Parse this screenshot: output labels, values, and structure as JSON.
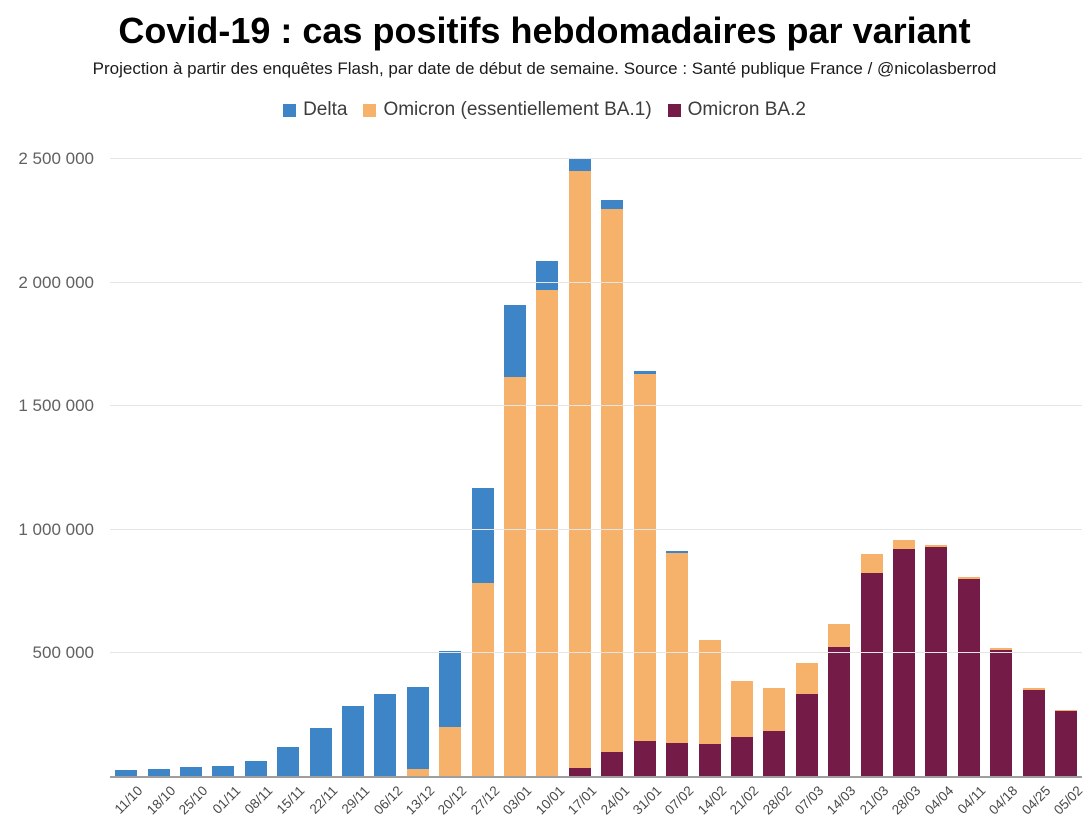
{
  "header": {
    "title": "Covid-19 : cas positifs hebdomadaires par variant",
    "subtitle": "Projection à partir des enquêtes Flash, par date de début de semaine. Source : Santé publique France / @nicolasberrod"
  },
  "legend": [
    {
      "label": "Delta",
      "color": "#3d85c6"
    },
    {
      "label": "Omicron (essentiellement BA.1)",
      "color": "#f6b26b"
    },
    {
      "label": "Omicron BA.2",
      "color": "#741b47"
    }
  ],
  "colors": {
    "delta_blue": "#3d85c6",
    "omicron_ba1_orange": "#f6b26b",
    "omicron_ba2_maroon": "#741b47",
    "gridline": "#e6e6e6",
    "axis_line": "#9e9e9e"
  },
  "chart_data": {
    "type": "bar",
    "stacked": true,
    "title": "Covid-19 : cas positifs hebdomadaires par variant",
    "subtitle": "Projection à partir des enquêtes Flash, par date de début de semaine. Source : Santé publique France / @nicolasberrod",
    "legend_position": "top",
    "grid": true,
    "categories": [
      "11/10",
      "18/10",
      "25/10",
      "01/11",
      "08/11",
      "15/11",
      "22/11",
      "29/11",
      "06/12",
      "13/12",
      "20/12",
      "27/12",
      "03/01",
      "10/01",
      "17/01",
      "24/01",
      "31/01",
      "07/02",
      "14/02",
      "21/02",
      "28/02",
      "07/03",
      "14/03",
      "21/03",
      "28/03",
      "04/04",
      "04/11",
      "04/18",
      "04/25",
      "05/02"
    ],
    "series": [
      {
        "name": "Delta",
        "color": "#3d85c6",
        "values": [
          30000,
          32000,
          40000,
          44000,
          65000,
          121000,
          198000,
          287000,
          336000,
          332000,
          308000,
          385000,
          290000,
          115000,
          55000,
          36000,
          10000,
          8000,
          0,
          0,
          0,
          0,
          0,
          0,
          0,
          0,
          0,
          0,
          0,
          0
        ]
      },
      {
        "name": "Omicron (essentiellement BA.1)",
        "color": "#f6b26b",
        "values": [
          0,
          0,
          0,
          0,
          0,
          0,
          0,
          0,
          0,
          32000,
          202000,
          785000,
          1619000,
          1972000,
          2412000,
          2200000,
          1487000,
          770000,
          420000,
          226000,
          174000,
          125000,
          96000,
          77000,
          37000,
          8000,
          8000,
          8000,
          6000,
          4000
        ]
      },
      {
        "name": "Omicron BA.2",
        "color": "#741b47",
        "values": [
          0,
          0,
          0,
          0,
          0,
          0,
          0,
          0,
          0,
          0,
          0,
          0,
          0,
          0,
          38000,
          100000,
          145000,
          137000,
          133000,
          162000,
          186000,
          336000,
          525000,
          825000,
          922000,
          930000,
          801000,
          514000,
          354000,
          267000
        ]
      }
    ],
    "stack_order_bottom_to_top": [
      "Omicron BA.2",
      "Omicron (essentiellement BA.1)",
      "Delta"
    ],
    "y_axis": {
      "min": 0,
      "max": 2500000,
      "ticks": [
        {
          "value": 500000,
          "label": "500 000"
        },
        {
          "value": 1000000,
          "label": "1 000 000"
        },
        {
          "value": 1500000,
          "label": "1 500 000"
        },
        {
          "value": 2000000,
          "label": "2 000 000"
        },
        {
          "value": 2500000,
          "label": "2 500 000"
        }
      ]
    },
    "x_axis": {
      "label_rotation_deg": -45
    }
  }
}
